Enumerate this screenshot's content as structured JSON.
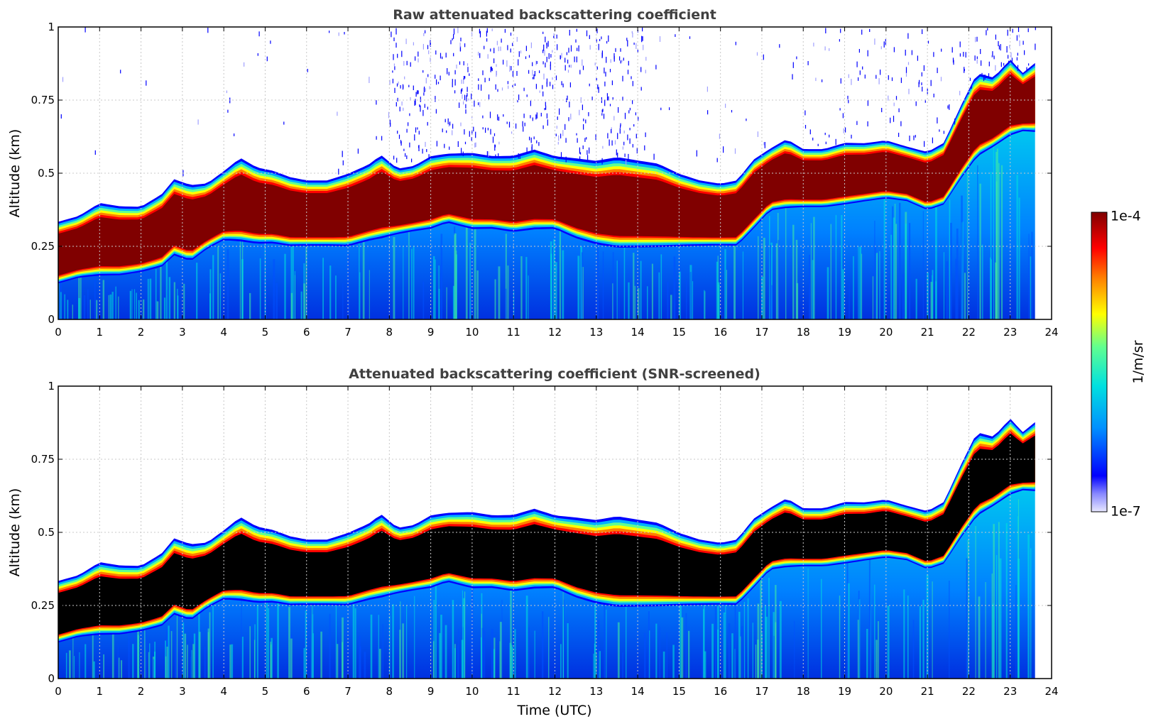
{
  "chart_data": [
    {
      "type": "heatmap",
      "title": "Raw attenuated backscattering coefficient",
      "xlabel": "",
      "ylabel": "Altitude (km)",
      "xlim": [
        0,
        24
      ],
      "ylim": [
        0,
        1
      ],
      "xticks": [
        "0",
        "1",
        "2",
        "3",
        "4",
        "5",
        "6",
        "7",
        "8",
        "9",
        "10",
        "11",
        "12",
        "13",
        "14",
        "15",
        "16",
        "17",
        "18",
        "19",
        "20",
        "21",
        "22",
        "23",
        "24"
      ],
      "yticks": [
        "0",
        "0.25",
        "0.5",
        "0.75",
        "1"
      ],
      "grid": true,
      "screened": false,
      "profile_time_h": [
        0,
        0.5,
        1.0,
        1.5,
        2.0,
        2.5,
        2.8,
        3.2,
        3.6,
        4.0,
        4.4,
        4.8,
        5.2,
        5.6,
        6.0,
        6.5,
        7.0,
        7.5,
        7.8,
        8.2,
        8.6,
        9.0,
        9.4,
        10.0,
        10.5,
        11.0,
        11.5,
        12.0,
        12.5,
        13.0,
        13.5,
        14.0,
        14.5,
        15.0,
        15.5,
        16.0,
        16.4,
        16.8,
        17.2,
        17.6,
        18.0,
        18.5,
        19.0,
        19.5,
        20.0,
        20.5,
        21.0,
        21.4,
        21.8,
        22.2,
        22.6,
        23.0,
        23.3,
        23.6
      ],
      "layer_top_km": [
        0.31,
        0.33,
        0.37,
        0.36,
        0.36,
        0.4,
        0.45,
        0.43,
        0.44,
        0.48,
        0.52,
        0.49,
        0.48,
        0.46,
        0.45,
        0.45,
        0.47,
        0.5,
        0.53,
        0.49,
        0.5,
        0.53,
        0.54,
        0.54,
        0.53,
        0.53,
        0.55,
        0.53,
        0.52,
        0.51,
        0.52,
        0.51,
        0.5,
        0.47,
        0.45,
        0.44,
        0.45,
        0.52,
        0.56,
        0.59,
        0.56,
        0.56,
        0.58,
        0.58,
        0.59,
        0.57,
        0.55,
        0.58,
        0.7,
        0.81,
        0.8,
        0.86,
        0.82,
        0.85
      ],
      "layer_base_km": [
        0.14,
        0.16,
        0.17,
        0.17,
        0.18,
        0.2,
        0.24,
        0.22,
        0.26,
        0.29,
        0.29,
        0.28,
        0.28,
        0.27,
        0.27,
        0.27,
        0.27,
        0.29,
        0.3,
        0.31,
        0.32,
        0.33,
        0.35,
        0.33,
        0.33,
        0.32,
        0.33,
        0.33,
        0.3,
        0.28,
        0.27,
        0.27,
        0.27,
        0.27,
        0.27,
        0.27,
        0.27,
        0.33,
        0.39,
        0.4,
        0.4,
        0.4,
        0.41,
        0.42,
        0.43,
        0.42,
        0.39,
        0.41,
        0.5,
        0.58,
        0.61,
        0.65,
        0.66,
        0.66
      ],
      "data_end_h": 23.6
    },
    {
      "type": "heatmap",
      "title": "Attenuated backscattering coefficient (SNR-screened)",
      "xlabel": "Time (UTC)",
      "ylabel": "Altitude (km)",
      "xlim": [
        0,
        24
      ],
      "ylim": [
        0,
        1
      ],
      "xticks": [
        "0",
        "1",
        "2",
        "3",
        "4",
        "5",
        "6",
        "7",
        "8",
        "9",
        "10",
        "11",
        "12",
        "13",
        "14",
        "15",
        "16",
        "17",
        "18",
        "19",
        "20",
        "21",
        "22",
        "23",
        "24"
      ],
      "yticks": [
        "0",
        "0.25",
        "0.5",
        "0.75",
        "1"
      ],
      "grid": true,
      "screened": true,
      "data_end_h": 23.6
    }
  ],
  "colorbar": {
    "label": "1/m/sr",
    "max_label": "1e-4",
    "min_label": "1e-7",
    "scale": "log",
    "range": [
      1e-07,
      0.0001
    ],
    "colormap": [
      "#e8e8ff",
      "#0000ff",
      "#00a0ff",
      "#00e0e0",
      "#60ff90",
      "#ffff00",
      "#ff8000",
      "#ff0000",
      "#800000"
    ]
  },
  "colors": {
    "saturated_screened": "#000000",
    "grid": "#c8c8c8",
    "title_text": "#404040"
  }
}
